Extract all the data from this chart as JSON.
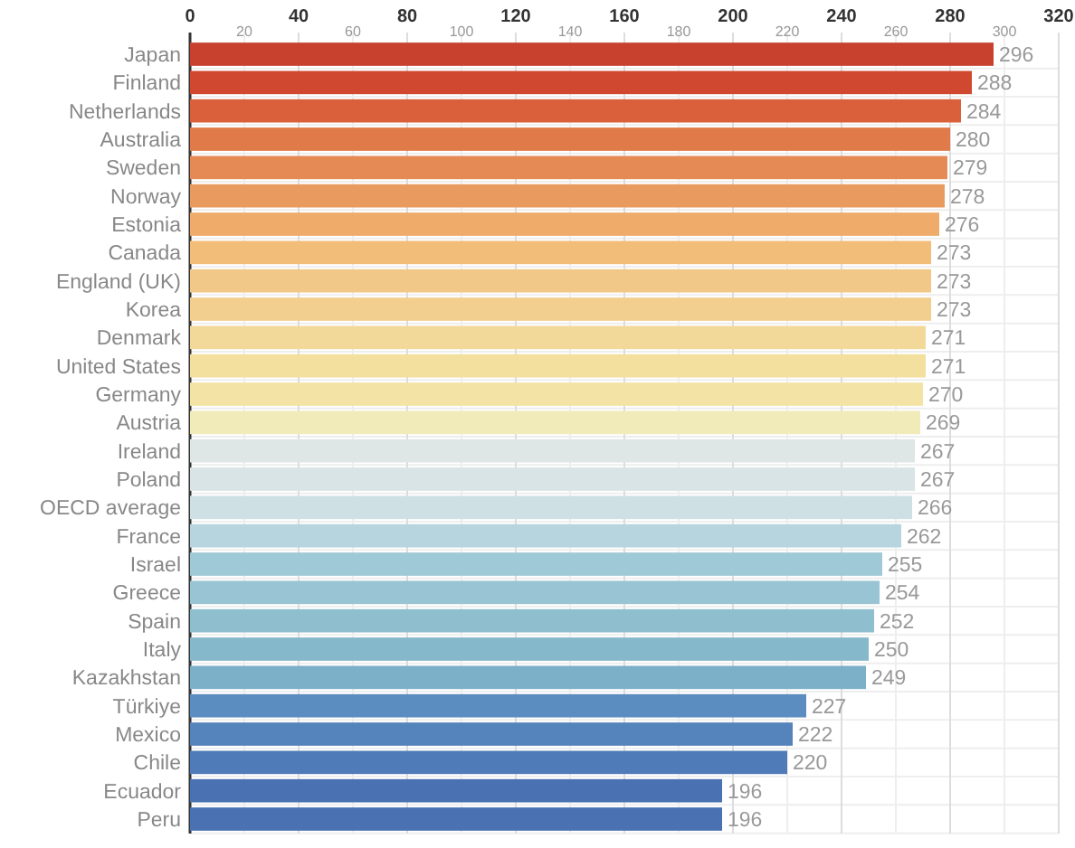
{
  "chart_data": {
    "type": "bar",
    "orientation": "horizontal",
    "data_labels": true,
    "grid": true,
    "categories": [
      "Japan",
      "Finland",
      "Netherlands",
      "Australia",
      "Sweden",
      "Norway",
      "Estonia",
      "Canada",
      "England (UK)",
      "Korea",
      "Denmark",
      "United States",
      "Germany",
      "Austria",
      "Ireland",
      "Poland",
      "OECD average",
      "France",
      "Israel",
      "Greece",
      "Spain",
      "Italy",
      "Kazakhstan",
      "Türkiye",
      "Mexico",
      "Chile",
      "Ecuador",
      "Peru"
    ],
    "values": [
      296,
      288,
      284,
      280,
      279,
      278,
      276,
      273,
      273,
      273,
      271,
      271,
      270,
      269,
      267,
      267,
      266,
      262,
      255,
      254,
      252,
      250,
      249,
      227,
      222,
      220,
      196,
      196
    ],
    "colors": [
      "#c8412f",
      "#d0482f",
      "#d9603a",
      "#e07a48",
      "#e58a55",
      "#e99a5e",
      "#eeab6a",
      "#f1bd78",
      "#f2c888",
      "#f3cf8f",
      "#f3d999",
      "#f3df9e",
      "#f3e4a5",
      "#f1ebb9",
      "#dfe6e6",
      "#d8e4e6",
      "#cfe0e4",
      "#b6d5de",
      "#9fc9d6",
      "#98c4d3",
      "#8fbecf",
      "#86b8cc",
      "#7cb0c9",
      "#5b8dc0",
      "#5584bc",
      "#4f7cb8",
      "#4a72b2",
      "#4a72b2"
    ],
    "xlim": [
      0,
      320
    ],
    "xticks": [
      0,
      40,
      80,
      120,
      160,
      200,
      240,
      280,
      320
    ],
    "x2lim": [
      0,
      320
    ],
    "x2ticks": [
      20,
      60,
      100,
      140,
      180,
      220,
      260,
      300
    ]
  }
}
